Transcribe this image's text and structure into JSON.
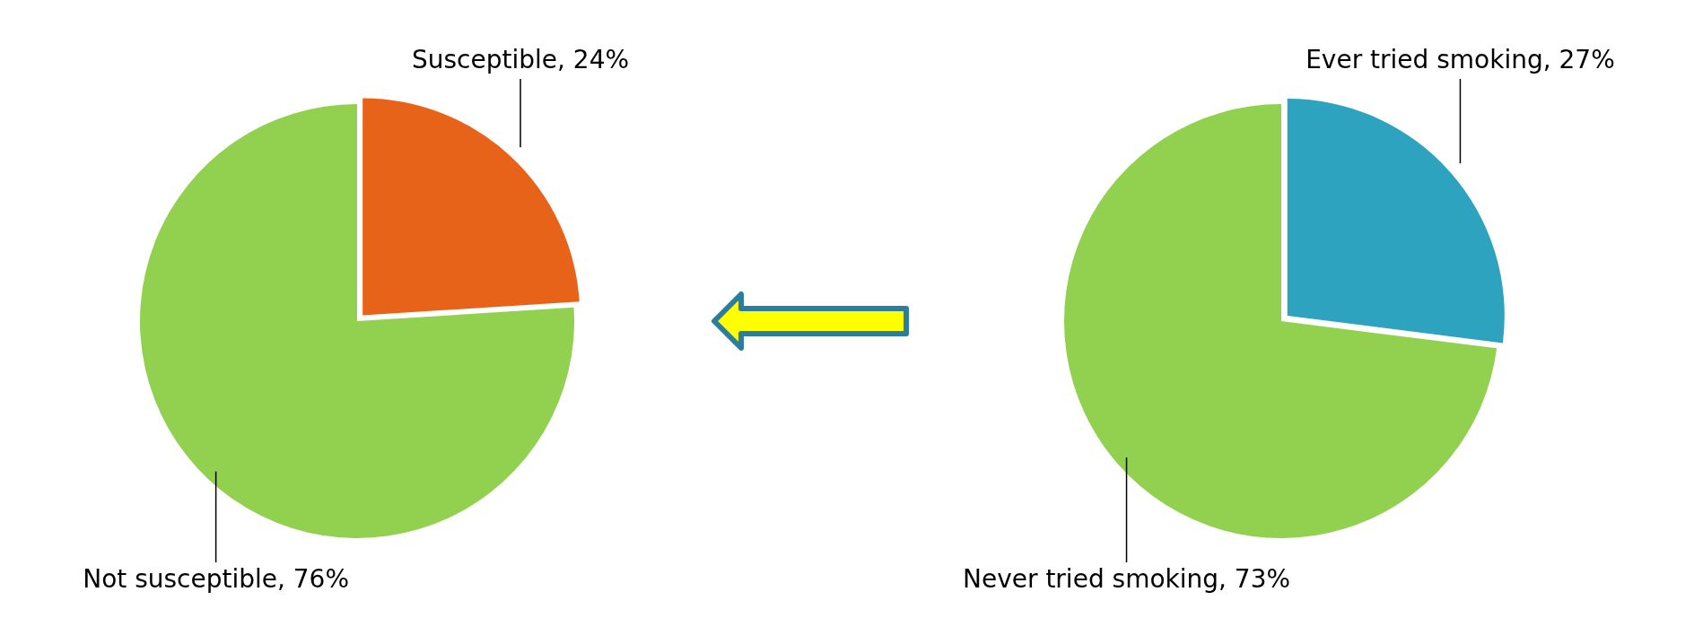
{
  "chart_data": [
    {
      "type": "pie",
      "categories": [
        "Susceptible",
        "Not susceptible"
      ],
      "values": [
        24,
        76
      ],
      "colors": [
        "#e8631a",
        "#92d050"
      ],
      "value_labels": [
        "24%",
        "76%"
      ]
    },
    {
      "type": "pie",
      "categories": [
        "Ever tried smoking",
        "Never tried smoking"
      ],
      "values": [
        27,
        73
      ],
      "colors": [
        "#2ea3bf",
        "#92d050"
      ],
      "value_labels": [
        "27%",
        "73%"
      ]
    }
  ]
}
